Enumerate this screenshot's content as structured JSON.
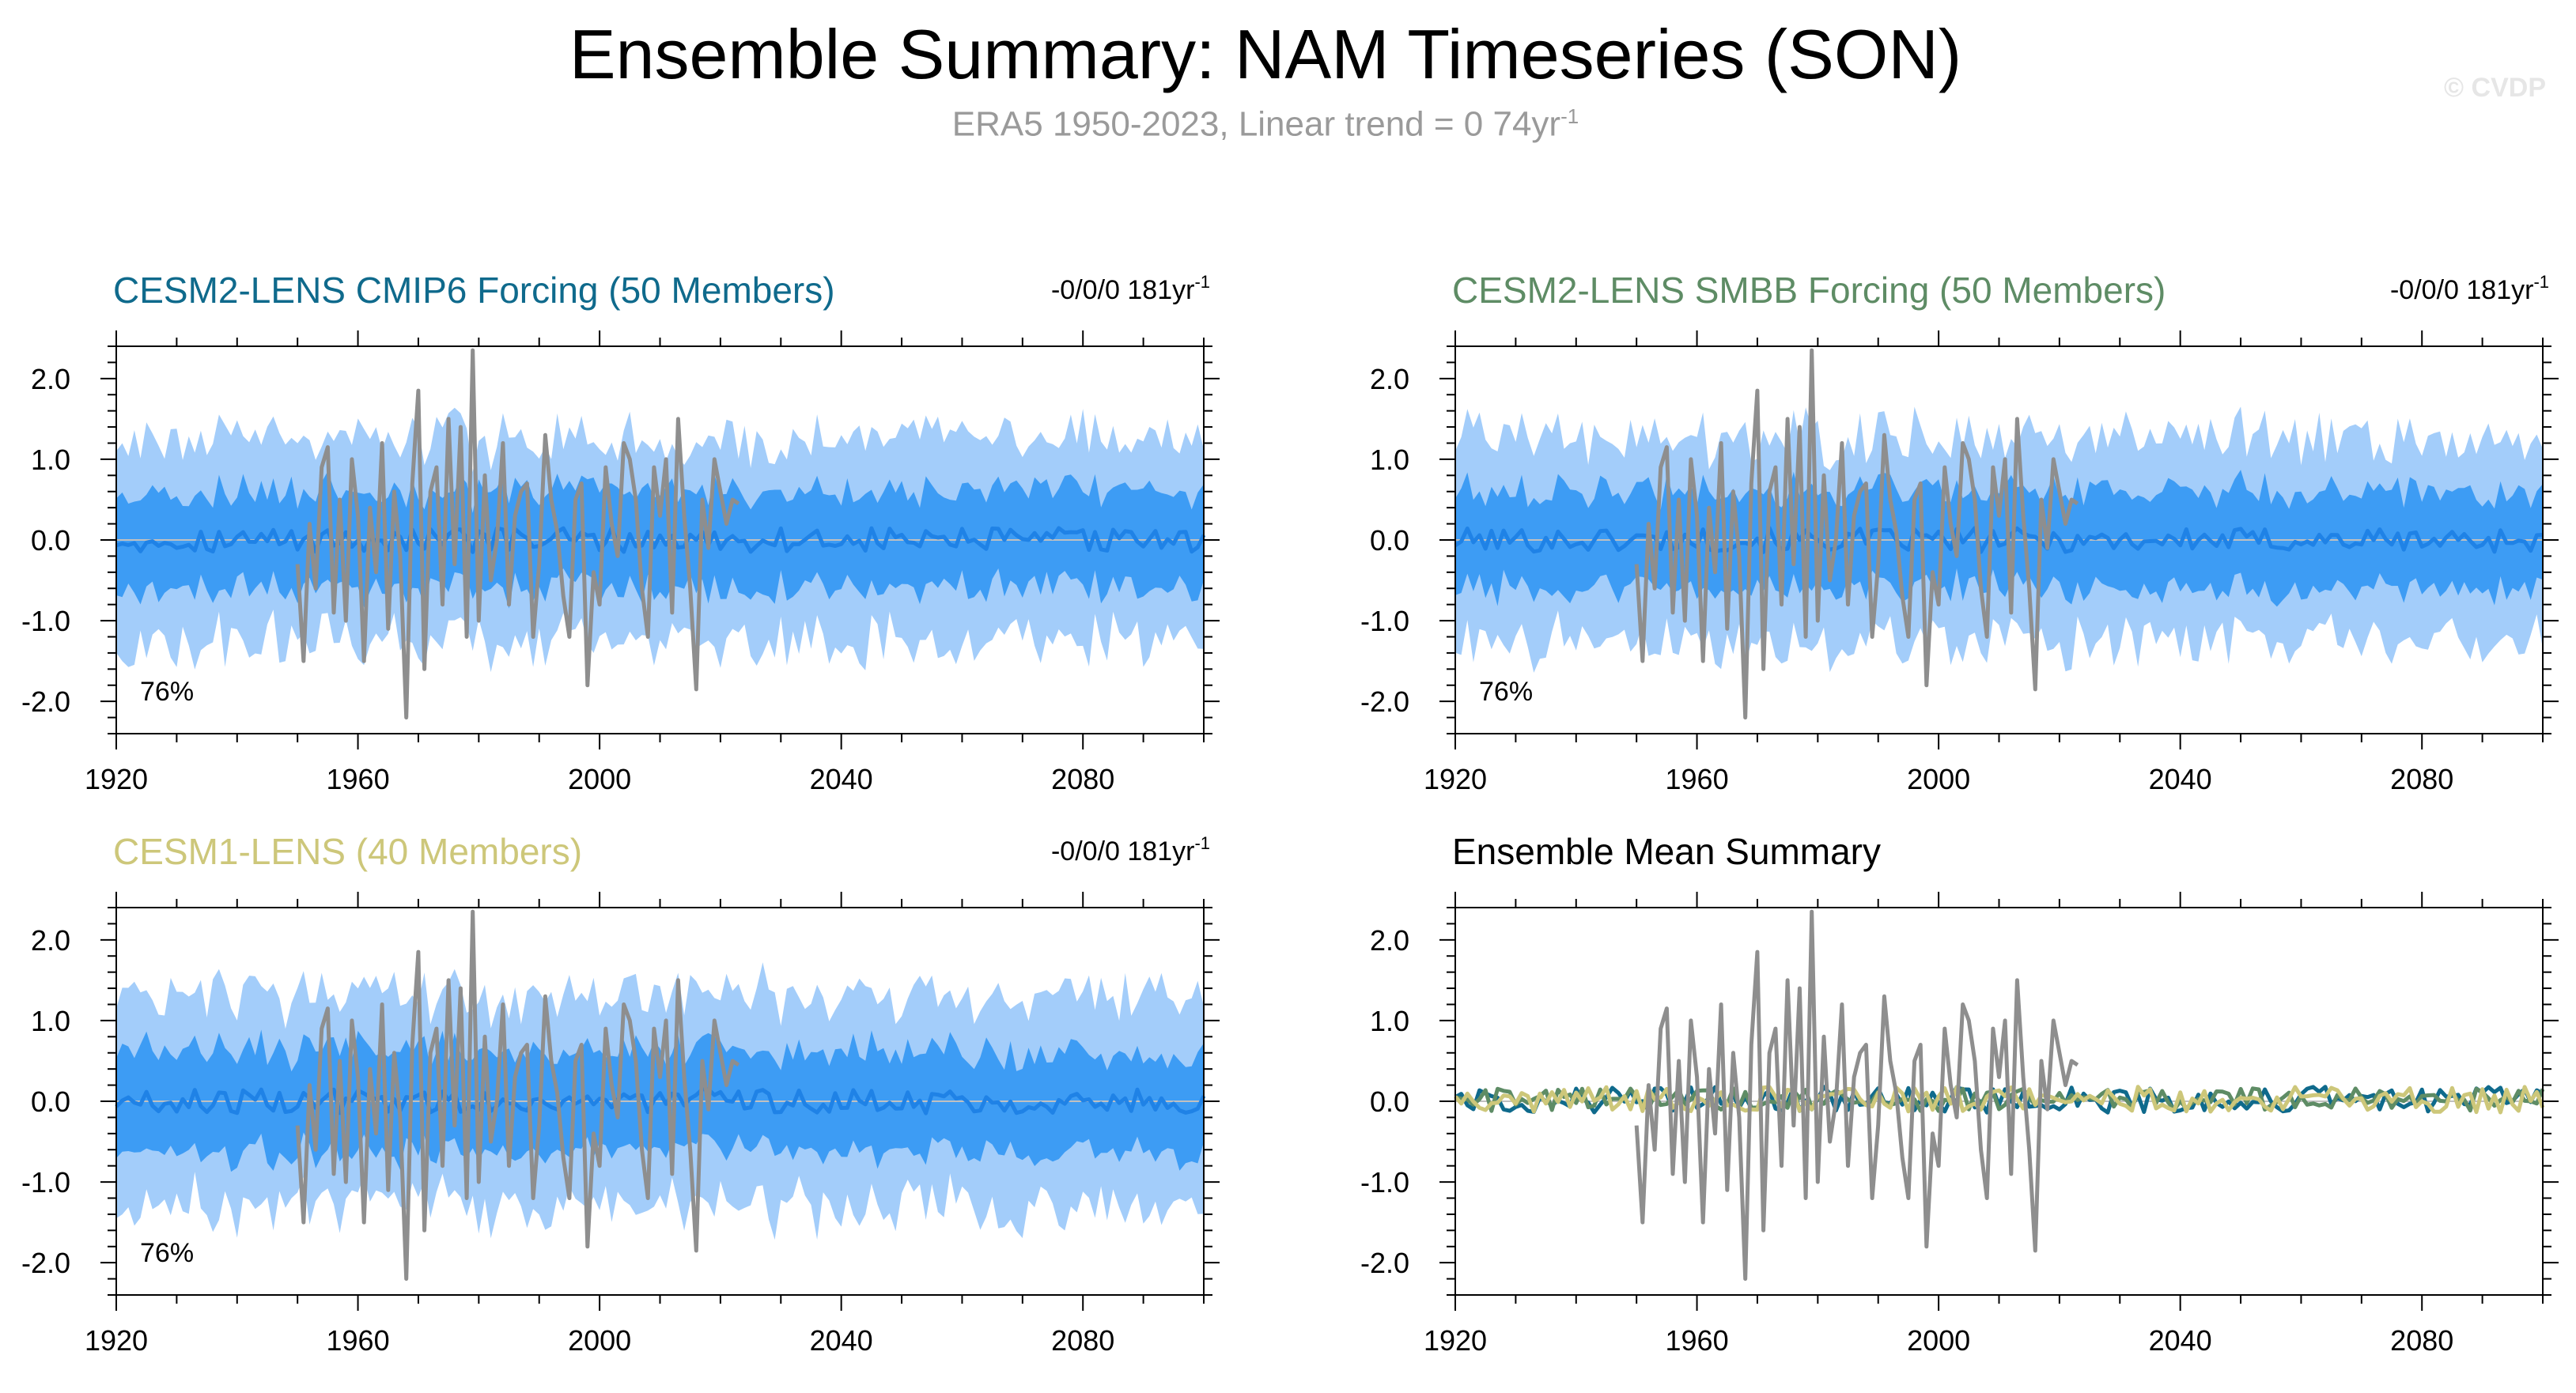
{
  "header": {
    "title": "Ensemble Summary: NAM Timeseries (SON)",
    "subtitle_text": "ERA5 1950-2023, Linear trend = 0 74yr",
    "subtitle_exp": "-1",
    "credit": "© CVDP"
  },
  "colors": {
    "band_outer": "#a3cdfa",
    "band_inner": "#3d9cf4",
    "ens_mean": "#1f82e6",
    "obs": "#8e8e8e",
    "cmip6": "#0f6a8c",
    "smbb": "#5e8c65",
    "cesm1": "#cdc77a"
  },
  "chart_data": [
    {
      "type": "area",
      "title": "CESM2-LENS CMIP6 Forcing (50 Members)",
      "title_color": "#0f6a8c",
      "trend_text": "-0/0/0 181yr",
      "trend_exp": "-1",
      "percent_label": "76%",
      "x_range": [
        1920,
        2100
      ],
      "ylim": [
        -2.4,
        2.4
      ],
      "x_ticks": [
        1920,
        1960,
        2000,
        2040,
        2080
      ],
      "y_ticks": [
        2.0,
        1.0,
        0.0,
        -1.0,
        -2.0
      ],
      "y_tick_labels": [
        "2.0",
        "1.0",
        "0.0",
        "-1.0",
        "-2.0"
      ],
      "series": [
        {
          "role": "ensemble spread 10-90%",
          "x_start": 1920,
          "x_end": 2100,
          "half_width": 1.25
        },
        {
          "role": "ensemble spread 25-75%",
          "x_start": 1920,
          "x_end": 2100,
          "half_width": 0.6
        },
        {
          "role": "ensemble mean",
          "x_start": 1920,
          "x_end": 2100,
          "amplitude": 0.15
        },
        {
          "role": "observations",
          "x": [
            1950,
            1951,
            1952,
            1953,
            1954,
            1955,
            1956,
            1957,
            1958,
            1959,
            1960,
            1961,
            1962,
            1963,
            1964,
            1965,
            1966,
            1967,
            1968,
            1969,
            1970,
            1971,
            1972,
            1973,
            1974,
            1975,
            1976,
            1977,
            1978,
            1979,
            1980,
            1981,
            1982,
            1983,
            1984,
            1985,
            1986,
            1987,
            1988,
            1989,
            1990,
            1991,
            1992,
            1993,
            1994,
            1995,
            1996,
            1997,
            1998,
            1999,
            2000,
            2001,
            2002,
            2003,
            2004,
            2005,
            2006,
            2007,
            2008,
            2009,
            2010,
            2011,
            2012,
            2013,
            2014,
            2015,
            2016,
            2017,
            2018,
            2019,
            2020,
            2021,
            2022,
            2023
          ],
          "values": [
            -0.3,
            -1.5,
            0.2,
            -0.6,
            0.9,
            1.15,
            -0.9,
            0.5,
            -1.0,
            1.0,
            0.3,
            -1.5,
            0.4,
            -0.4,
            1.2,
            -1.1,
            0.6,
            -0.2,
            -2.2,
            0.7,
            1.85,
            -1.6,
            0.6,
            0.9,
            -0.8,
            1.5,
            -0.3,
            1.4,
            -1.2,
            2.35,
            -1.0,
            0.8,
            -0.5,
            0.0,
            1.2,
            -0.8,
            0.3,
            0.6,
            0.7,
            -1.2,
            -0.3,
            1.3,
            0.5,
            0.1,
            -0.7,
            -1.2,
            0.5,
            0.7,
            -1.8,
            -0.4,
            -0.8,
            0.9,
            0.2,
            -0.2,
            1.2,
            1.0,
            0.5,
            -0.6,
            -1.2,
            0.9,
            0.3,
            1.0,
            -0.9,
            1.5,
            0.3,
            -0.6,
            -1.85,
            0.5,
            -0.1,
            1.0,
            0.6,
            0.2,
            0.5,
            0.45
          ]
        }
      ]
    },
    {
      "type": "area",
      "title": "CESM2-LENS SMBB Forcing (50 Members)",
      "title_color": "#5e8c65",
      "trend_text": "-0/0/0 181yr",
      "trend_exp": "-1",
      "percent_label": "76%",
      "x_range": [
        1920,
        2100
      ],
      "ylim": [
        -2.4,
        2.4
      ],
      "x_ticks": [
        1920,
        1960,
        2000,
        2040,
        2080
      ],
      "y_ticks": [
        2.0,
        1.0,
        0.0,
        -1.0,
        -2.0
      ],
      "y_tick_labels": [
        "2.0",
        "1.0",
        "0.0",
        "-1.0",
        "-2.0"
      ],
      "series": [
        {
          "role": "ensemble spread 10-90%",
          "x_start": 1920,
          "x_end": 2100,
          "half_width": 1.25
        },
        {
          "role": "ensemble spread 25-75%",
          "x_start": 1920,
          "x_end": 2100,
          "half_width": 0.6
        },
        {
          "role": "ensemble mean",
          "x_start": 1920,
          "x_end": 2100,
          "amplitude": 0.15
        },
        {
          "role": "observations",
          "same_as_panel": 0
        }
      ]
    },
    {
      "type": "area",
      "title": "CESM1-LENS (40 Members)",
      "title_color": "#cdc77a",
      "trend_text": "-0/0/0 181yr",
      "trend_exp": "-1",
      "percent_label": "76%",
      "x_range": [
        1920,
        2100
      ],
      "ylim": [
        -2.4,
        2.4
      ],
      "x_ticks": [
        1920,
        1960,
        2000,
        2040,
        2080
      ],
      "y_ticks": [
        2.0,
        1.0,
        0.0,
        -1.0,
        -2.0
      ],
      "y_tick_labels": [
        "2.0",
        "1.0",
        "0.0",
        "-1.0",
        "-2.0"
      ],
      "series": [
        {
          "role": "ensemble spread 10-90%",
          "x_start": 1920,
          "x_end": 2100,
          "half_width": 1.3
        },
        {
          "role": "ensemble spread 25-75%",
          "x_start": 1920,
          "x_end": 2100,
          "half_width": 0.62
        },
        {
          "role": "ensemble mean",
          "x_start": 1920,
          "x_end": 2100,
          "amplitude": 0.15
        },
        {
          "role": "observations",
          "same_as_panel": 0
        }
      ]
    },
    {
      "type": "line",
      "title": "Ensemble Mean Summary",
      "title_color": "#000000",
      "x_range": [
        1920,
        2100
      ],
      "ylim": [
        -2.4,
        2.4
      ],
      "x_ticks": [
        1920,
        1960,
        2000,
        2040,
        2080
      ],
      "y_ticks": [
        2.0,
        1.0,
        0.0,
        -1.0,
        -2.0
      ],
      "y_tick_labels": [
        "2.0",
        "1.0",
        "0.0",
        "-1.0",
        "-2.0"
      ],
      "series": [
        {
          "role": "observations",
          "same_as_panel": 0
        },
        {
          "role": "CESM2-LENS CMIP6 Forcing ensemble mean",
          "color": "#0f6a8c",
          "x_start": 1920,
          "x_end": 2100,
          "amplitude": 0.16
        },
        {
          "role": "CESM2-LENS SMBB Forcing ensemble mean",
          "color": "#5e8c65",
          "x_start": 1920,
          "x_end": 2100,
          "amplitude": 0.14
        },
        {
          "role": "CESM1-LENS ensemble mean",
          "color": "#cdc77a",
          "x_start": 1920,
          "x_end": 2100,
          "amplitude": 0.16
        }
      ]
    }
  ]
}
